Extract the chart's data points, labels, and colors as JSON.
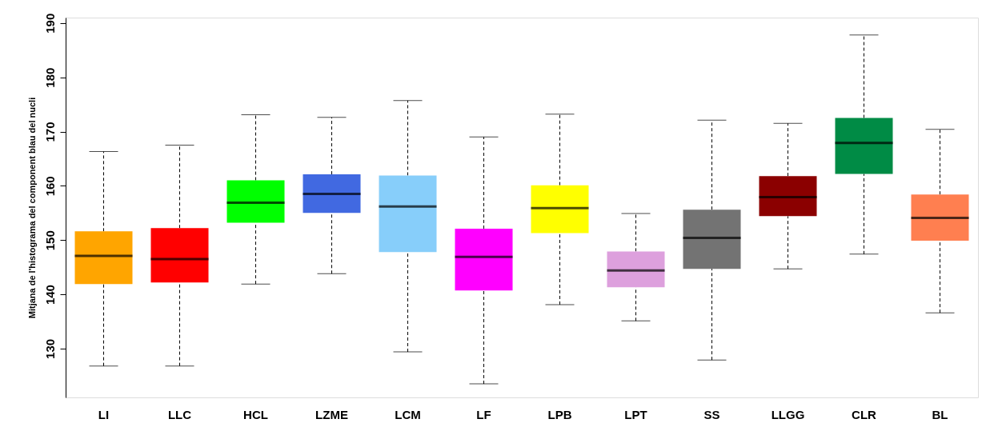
{
  "chart_data": {
    "type": "box",
    "ylabel": "Mitjana de l'histograma del component blau del nucli",
    "categories": [
      "LI",
      "LLC",
      "HCL",
      "LZME",
      "LCM",
      "LF",
      "LPB",
      "LPT",
      "SS",
      "LLGG",
      "CLR",
      "BL"
    ],
    "colors": [
      "#ffa500",
      "#ff0000",
      "#00ff00",
      "#4169e1",
      "#87cefa",
      "#ff00ff",
      "#ffff00",
      "#dda0dd",
      "#737373",
      "#8b0000",
      "#008b45",
      "#ff7f50"
    ],
    "boxes": [
      {
        "low": 126.8,
        "q1": 141.9,
        "median": 147.1,
        "q3": 151.6,
        "high": 166.3
      },
      {
        "low": 126.8,
        "q1": 142.2,
        "median": 146.5,
        "q3": 152.2,
        "high": 167.5
      },
      {
        "low": 141.9,
        "q1": 153.2,
        "median": 156.9,
        "q3": 161.0,
        "high": 173.1
      },
      {
        "low": 143.8,
        "q1": 155.0,
        "median": 158.5,
        "q3": 162.1,
        "high": 172.6
      },
      {
        "low": 129.4,
        "q1": 147.8,
        "median": 156.2,
        "q3": 161.9,
        "high": 175.7
      },
      {
        "low": 123.5,
        "q1": 140.7,
        "median": 146.9,
        "q3": 152.1,
        "high": 169.0
      },
      {
        "low": 138.1,
        "q1": 151.3,
        "median": 155.9,
        "q3": 160.1,
        "high": 173.2
      },
      {
        "low": 135.1,
        "q1": 141.3,
        "median": 144.4,
        "q3": 147.9,
        "high": 154.9
      },
      {
        "low": 127.9,
        "q1": 144.7,
        "median": 150.4,
        "q3": 155.6,
        "high": 172.1
      },
      {
        "low": 144.7,
        "q1": 154.4,
        "median": 157.9,
        "q3": 161.8,
        "high": 171.5
      },
      {
        "low": 147.4,
        "q1": 162.2,
        "median": 167.9,
        "q3": 172.5,
        "high": 187.8
      },
      {
        "low": 136.6,
        "q1": 149.9,
        "median": 154.1,
        "q3": 158.4,
        "high": 170.4
      }
    ],
    "ylim": [
      121,
      191
    ],
    "yticks": [
      130,
      140,
      150,
      160,
      170,
      180,
      190
    ],
    "grid": false,
    "line_style": "dashed"
  }
}
